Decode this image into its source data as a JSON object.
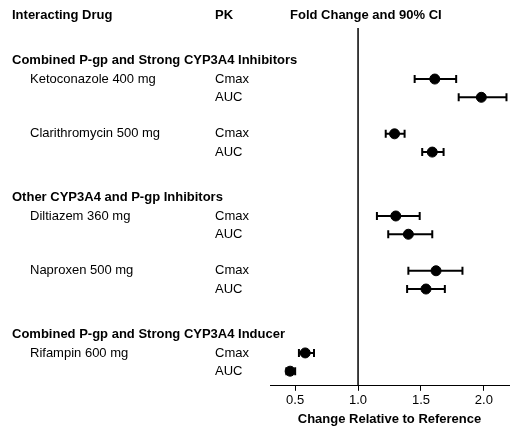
{
  "chart_data": {
    "type": "forest",
    "headers": {
      "drug": "Interacting Drug",
      "pk": "PK",
      "effect": "Fold Change and 90% CI"
    },
    "x_label": "Change Relative to Reference",
    "xlim": [
      0.3,
      2.2
    ],
    "xticks": [
      0.5,
      {
        "value": 1,
        "label": "1.0"
      },
      1.5,
      {
        "value": 2,
        "label": "2.0"
      }
    ],
    "reference_line": 1,
    "grid": false,
    "color": "#000000",
    "marker": "circle",
    "groups": [
      {
        "name": "Combined P-gp and Strong CYP3A4 Inhibitors",
        "drugs": [
          {
            "name": "Ketoconazole 400 mg",
            "measures": [
              {
                "pk": "Cmax",
                "value": 1.61,
                "ci": [
                  1.45,
                  1.78
                ]
              },
              {
                "pk": "AUC",
                "value": 1.98,
                "ci": [
                  1.8,
                  2.18
                ]
              }
            ]
          },
          {
            "name": "Clarithromycin 500 mg",
            "measures": [
              {
                "pk": "Cmax",
                "value": 1.29,
                "ci": [
                  1.22,
                  1.37
                ]
              },
              {
                "pk": "AUC",
                "value": 1.59,
                "ci": [
                  1.51,
                  1.68
                ]
              }
            ]
          }
        ]
      },
      {
        "name": "Other CYP3A4 and P-gp Inhibitors",
        "drugs": [
          {
            "name": "Diltiazem 360 mg",
            "measures": [
              {
                "pk": "Cmax",
                "value": 1.3,
                "ci": [
                  1.15,
                  1.49
                ]
              },
              {
                "pk": "AUC",
                "value": 1.4,
                "ci": [
                  1.24,
                  1.59
                ]
              }
            ]
          },
          {
            "name": "Naproxen 500 mg",
            "measures": [
              {
                "pk": "Cmax",
                "value": 1.62,
                "ci": [
                  1.4,
                  1.83
                ]
              },
              {
                "pk": "AUC",
                "value": 1.54,
                "ci": [
                  1.39,
                  1.69
                ]
              }
            ]
          }
        ]
      },
      {
        "name": "Combined P-gp and Strong CYP3A4 Inducer",
        "drugs": [
          {
            "name": "Rifampin 600 mg",
            "measures": [
              {
                "pk": "Cmax",
                "value": 0.58,
                "ci": [
                  0.53,
                  0.65
                ]
              },
              {
                "pk": "AUC",
                "value": 0.46,
                "ci": [
                  0.43,
                  0.5
                ]
              }
            ]
          }
        ]
      }
    ]
  }
}
